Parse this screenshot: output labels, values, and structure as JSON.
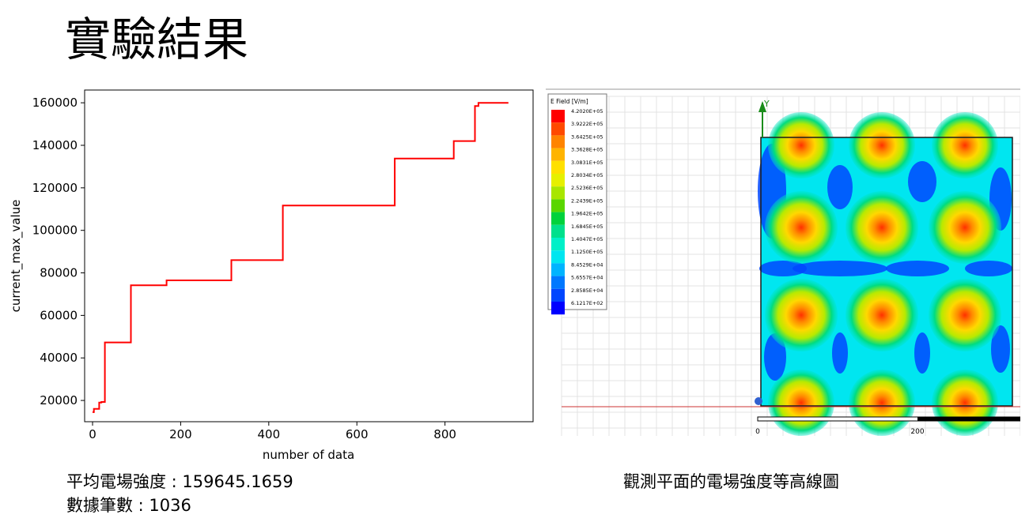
{
  "slide": {
    "title": "實驗結果",
    "avg_label": "平均電場強度 : 159645.1659",
    "count_label": "數據筆數 : 1036",
    "contour_caption": "觀測平面的電場強度等高線圖"
  },
  "chart_data": {
    "type": "line",
    "title": "",
    "xlabel": "number of data",
    "ylabel": "current_max_value",
    "xlim": [
      -18,
      1000
    ],
    "ylim": [
      10000,
      166000
    ],
    "xticks": [
      0,
      200,
      400,
      600,
      800
    ],
    "yticks": [
      20000,
      40000,
      60000,
      80000,
      100000,
      120000,
      140000,
      160000
    ],
    "line_color": "#ff0000",
    "series": [
      {
        "name": "current_max_value",
        "x": [
          0,
          3,
          3,
          15,
          15,
          20,
          20,
          28,
          28,
          87,
          87,
          168,
          168,
          315,
          315,
          432,
          432,
          686,
          686,
          820,
          820,
          868,
          868,
          876,
          876,
          944
        ],
        "y": [
          14500,
          14500,
          16000,
          16000,
          19000,
          19000,
          19300,
          19300,
          47300,
          47300,
          74200,
          74200,
          76500,
          76500,
          86000,
          86000,
          111700,
          111700,
          133800,
          133800,
          142000,
          142000,
          158500,
          158500,
          160000,
          160000
        ]
      }
    ]
  },
  "field_plot": {
    "legend_title": "E Field [V/m]",
    "legend_values": [
      "4.2020E+05",
      "3.9222E+05",
      "3.6425E+05",
      "3.3628E+05",
      "3.0831E+05",
      "2.8034E+05",
      "2.5236E+05",
      "2.2439E+05",
      "1.9642E+05",
      "1.6845E+05",
      "1.4047E+05",
      "1.1250E+05",
      "8.4529E+04",
      "5.6557E+04",
      "2.8585E+04",
      "6.1217E+02"
    ],
    "legend_colors": [
      "#ff0000",
      "#ff4a00",
      "#ff8400",
      "#ffb400",
      "#ffe000",
      "#e6f000",
      "#a8e600",
      "#5ad600",
      "#00d23c",
      "#00e08c",
      "#00f0c8",
      "#00e6f0",
      "#00b4ff",
      "#0078ff",
      "#0046ff",
      "#0000ff"
    ],
    "axis_label": "Y",
    "scale_labels": [
      "0",
      "200"
    ]
  }
}
